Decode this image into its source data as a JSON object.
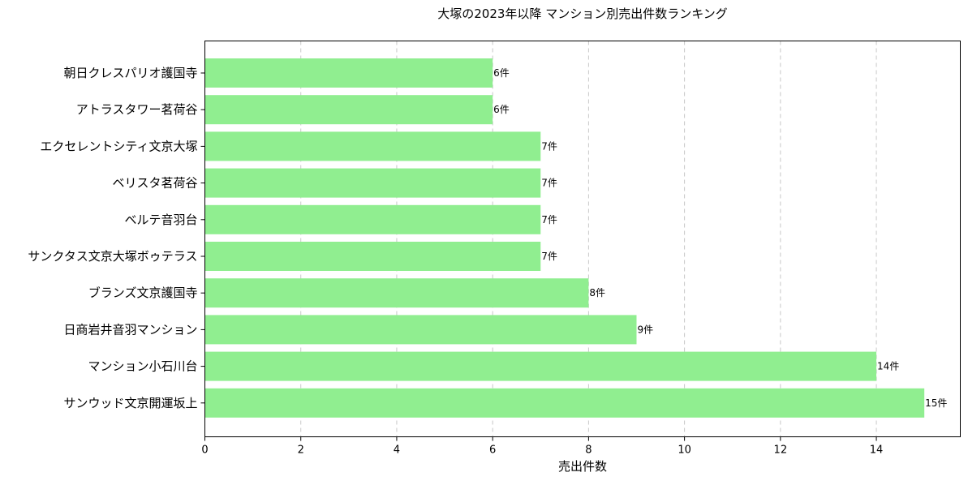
{
  "chart_data": {
    "type": "bar",
    "orientation": "horizontal",
    "title": "大塚の2023年以降 マンション別売出件数ランキング",
    "xlabel": "売出件数",
    "ylabel": "",
    "xlim": [
      0,
      15.75
    ],
    "xticks": [
      0,
      2,
      4,
      6,
      8,
      10,
      12,
      14
    ],
    "grid": "x-dashed",
    "bar_color": "#90ee90",
    "value_suffix": "件",
    "categories": [
      "朝日クレスパリオ護国寺",
      "アトラスタワー茗荷谷",
      "エクセレントシティ文京大塚",
      "ベリスタ茗荷谷",
      "ベルテ音羽台",
      "サンクタス文京大塚ボゥテラス",
      "ブランズ文京護国寺",
      "日商岩井音羽マンション",
      "マンション小石川台",
      "サンウッド文京開運坂上"
    ],
    "values": [
      6,
      6,
      7,
      7,
      7,
      7,
      8,
      9,
      14,
      15
    ],
    "data_labels": [
      "6件",
      "6件",
      "7件",
      "7件",
      "7件",
      "7件",
      "8件",
      "9件",
      "14件",
      "15件"
    ]
  }
}
